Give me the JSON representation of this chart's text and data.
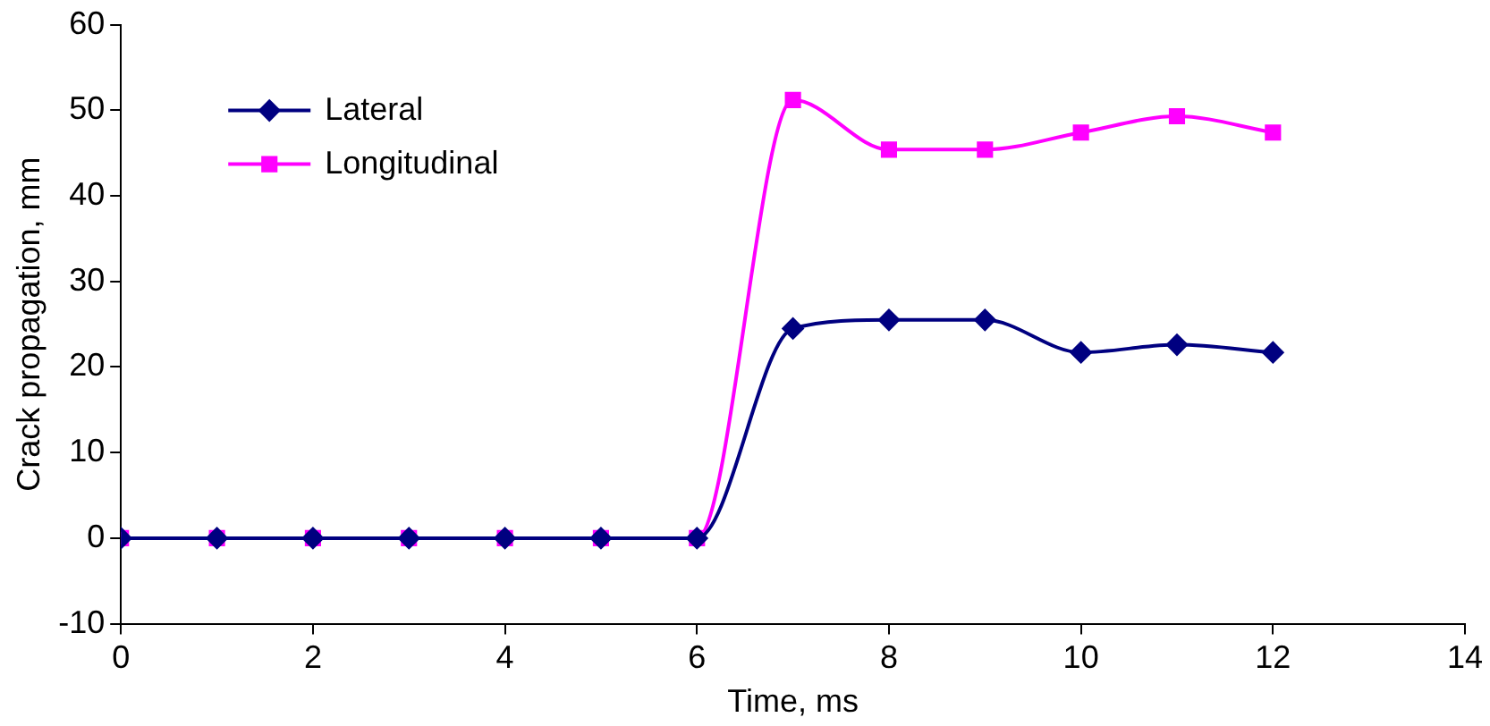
{
  "chart_data": {
    "type": "line",
    "xlabel": "Time, ms",
    "ylabel": "Crack propagation, mm",
    "xlim": [
      0,
      14
    ],
    "xticks": [
      0,
      2,
      4,
      6,
      8,
      10,
      12,
      14
    ],
    "ylim": [
      -10,
      60
    ],
    "yticks": [
      -10,
      0,
      10,
      20,
      30,
      40,
      50,
      60
    ],
    "grid": false,
    "legend": "top left",
    "line_style": "solid",
    "x": [
      0,
      1,
      2,
      3,
      4,
      5,
      6,
      7,
      8,
      9,
      10,
      11,
      12
    ],
    "series": [
      {
        "name": "Lateral",
        "color": "#000080",
        "marker": "diamond",
        "values": [
          0,
          0,
          0,
          0,
          0,
          0,
          0,
          24.5,
          25.5,
          25.5,
          21.7,
          22.6,
          21.7
        ]
      },
      {
        "name": "Longitudinal",
        "color": "#ff00ff",
        "marker": "square",
        "values": [
          0,
          0,
          0,
          0,
          0,
          0,
          0,
          51.2,
          45.4,
          45.4,
          47.4,
          49.3,
          47.4
        ]
      }
    ]
  }
}
